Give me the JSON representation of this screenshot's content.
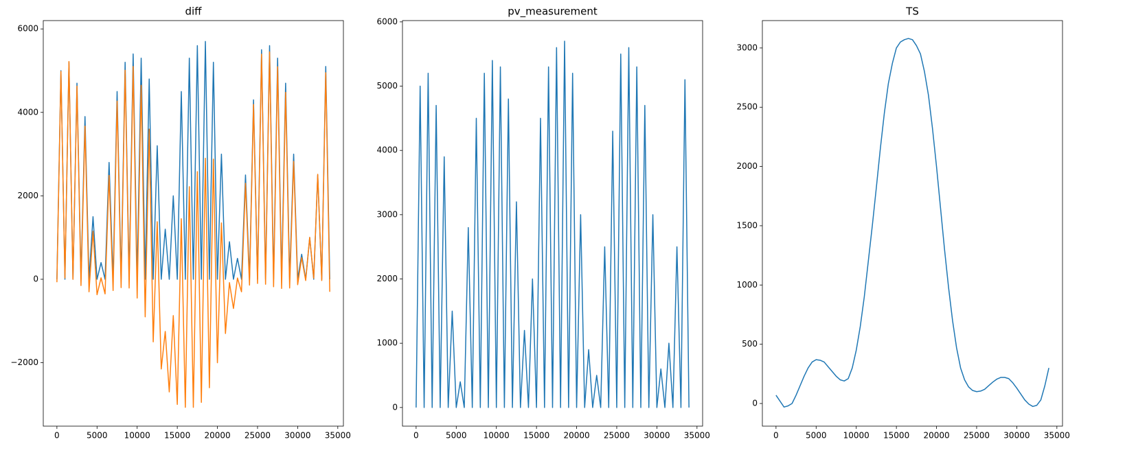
{
  "chart_data": [
    {
      "type": "line",
      "title": "diff",
      "x": [
        0,
        500,
        1000,
        1500,
        2000,
        2500,
        3000,
        3500,
        4000,
        4500,
        5000,
        5500,
        6000,
        6500,
        7000,
        7500,
        8000,
        8500,
        9000,
        9500,
        10000,
        10500,
        11000,
        11500,
        12000,
        12500,
        13000,
        13500,
        14000,
        14500,
        15000,
        15500,
        16000,
        16500,
        17000,
        17500,
        18000,
        18500,
        19000,
        19500,
        20000,
        20500,
        21000,
        21500,
        22000,
        22500,
        23000,
        23500,
        24000,
        24500,
        25000,
        25500,
        26000,
        26500,
        27000,
        27500,
        28000,
        28500,
        29000,
        29500,
        30000,
        30500,
        31000,
        31500,
        32000,
        32500,
        33000,
        33500,
        34000
      ],
      "series": [
        {
          "color": "#1f77b4",
          "values": [
            0,
            5000,
            0,
            5200,
            0,
            4700,
            0,
            3900,
            0,
            1500,
            0,
            400,
            0,
            2800,
            0,
            4500,
            0,
            5200,
            0,
            5400,
            0,
            5300,
            0,
            4800,
            0,
            3200,
            0,
            1200,
            0,
            2000,
            0,
            4500,
            0,
            5300,
            0,
            5600,
            0,
            5700,
            0,
            5200,
            0,
            3000,
            0,
            900,
            0,
            500,
            0,
            2500,
            0,
            4300,
            0,
            5500,
            0,
            5600,
            0,
            5300,
            0,
            4700,
            0,
            3000,
            0,
            600,
            0,
            1000,
            0,
            2500,
            0,
            5100,
            0
          ]
        },
        {
          "color": "#ff7f0e",
          "values": [
            -70,
            4980,
            30,
            5220,
            0,
            4630,
            -150,
            3670,
            -300,
            1150,
            -370,
            35,
            -350,
            2490,
            -270,
            4270,
            -200,
            5010,
            -210,
            5100,
            -450,
            4650,
            -900,
            3600,
            -1500,
            1380,
            -2150,
            -1250,
            -2700,
            -870,
            -3000,
            1450,
            -3070,
            2220,
            -3070,
            2580,
            -2950,
            2900,
            -2600,
            2880,
            -2000,
            1350,
            -1300,
            -80,
            -700,
            30,
            -300,
            2300,
            -140,
            4190,
            -100,
            5395,
            -120,
            5450,
            -180,
            5095,
            -220,
            4480,
            -210,
            2825,
            -130,
            520,
            -30,
            1005,
            25,
            2515,
            -30,
            4950,
            -300
          ]
        }
      ],
      "xlim": [
        -1700,
        35700
      ],
      "ylim": [
        -3520,
        6200
      ],
      "xticks": [
        0,
        5000,
        10000,
        15000,
        20000,
        25000,
        30000,
        35000
      ],
      "yticks": [
        {
          "value": -2000,
          "label": "−2000"
        },
        0,
        2000,
        4000,
        6000
      ]
    },
    {
      "type": "line",
      "title": "pv_measurement",
      "x": [
        0,
        500,
        1000,
        1500,
        2000,
        2500,
        3000,
        3500,
        4000,
        4500,
        5000,
        5500,
        6000,
        6500,
        7000,
        7500,
        8000,
        8500,
        9000,
        9500,
        10000,
        10500,
        11000,
        11500,
        12000,
        12500,
        13000,
        13500,
        14000,
        14500,
        15000,
        15500,
        16000,
        16500,
        17000,
        17500,
        18000,
        18500,
        19000,
        19500,
        20000,
        20500,
        21000,
        21500,
        22000,
        22500,
        23000,
        23500,
        24000,
        24500,
        25000,
        25500,
        26000,
        26500,
        27000,
        27500,
        28000,
        28500,
        29000,
        29500,
        30000,
        30500,
        31000,
        31500,
        32000,
        32500,
        33000,
        33500,
        34000
      ],
      "series": [
        {
          "color": "#1f77b4",
          "values": [
            0,
            5000,
            0,
            5200,
            0,
            4700,
            0,
            3900,
            0,
            1500,
            0,
            400,
            0,
            2800,
            0,
            4500,
            0,
            5200,
            0,
            5400,
            0,
            5300,
            0,
            4800,
            0,
            3200,
            0,
            1200,
            0,
            2000,
            0,
            4500,
            0,
            5300,
            0,
            5600,
            0,
            5700,
            0,
            5200,
            0,
            3000,
            0,
            900,
            0,
            500,
            0,
            2500,
            0,
            4300,
            0,
            5500,
            0,
            5600,
            0,
            5300,
            0,
            4700,
            0,
            3000,
            0,
            600,
            0,
            1000,
            0,
            2500,
            0,
            5100,
            0
          ]
        }
      ],
      "xlim": [
        -1700,
        35700
      ],
      "ylim": [
        -290,
        6020
      ],
      "xticks": [
        0,
        5000,
        10000,
        15000,
        20000,
        25000,
        30000,
        35000
      ],
      "yticks": [
        0,
        1000,
        2000,
        3000,
        4000,
        5000,
        6000
      ]
    },
    {
      "type": "line",
      "title": "TS",
      "x": [
        0,
        500,
        1000,
        1500,
        2000,
        2500,
        3000,
        3500,
        4000,
        4500,
        5000,
        5500,
        6000,
        6500,
        7000,
        7500,
        8000,
        8500,
        9000,
        9500,
        10000,
        10500,
        11000,
        11500,
        12000,
        12500,
        13000,
        13500,
        14000,
        14500,
        15000,
        15500,
        16000,
        16500,
        17000,
        17500,
        18000,
        18500,
        19000,
        19500,
        20000,
        20500,
        21000,
        21500,
        22000,
        22500,
        23000,
        23500,
        24000,
        24500,
        25000,
        25500,
        26000,
        26500,
        27000,
        27500,
        28000,
        28500,
        29000,
        29500,
        30000,
        30500,
        31000,
        31500,
        32000,
        32500,
        33000,
        33500,
        34000
      ],
      "series": [
        {
          "color": "#1f77b4",
          "values": [
            70,
            20,
            -30,
            -20,
            0,
            70,
            150,
            230,
            300,
            350,
            370,
            365,
            350,
            310,
            270,
            230,
            200,
            190,
            210,
            300,
            450,
            650,
            900,
            1200,
            1500,
            1820,
            2150,
            2450,
            2700,
            2870,
            3000,
            3050,
            3070,
            3080,
            3070,
            3020,
            2950,
            2800,
            2600,
            2320,
            2000,
            1650,
            1300,
            980,
            700,
            470,
            300,
            200,
            140,
            110,
            100,
            105,
            120,
            150,
            180,
            205,
            220,
            220,
            210,
            175,
            130,
            80,
            30,
            -5,
            -25,
            -15,
            30,
            150,
            300
          ]
        }
      ],
      "xlim": [
        -1700,
        35700
      ],
      "ylim": [
        -191,
        3231
      ],
      "xticks": [
        0,
        5000,
        10000,
        15000,
        20000,
        25000,
        30000,
        35000
      ],
      "yticks": [
        0,
        500,
        1000,
        1500,
        2000,
        2500,
        3000
      ]
    }
  ]
}
